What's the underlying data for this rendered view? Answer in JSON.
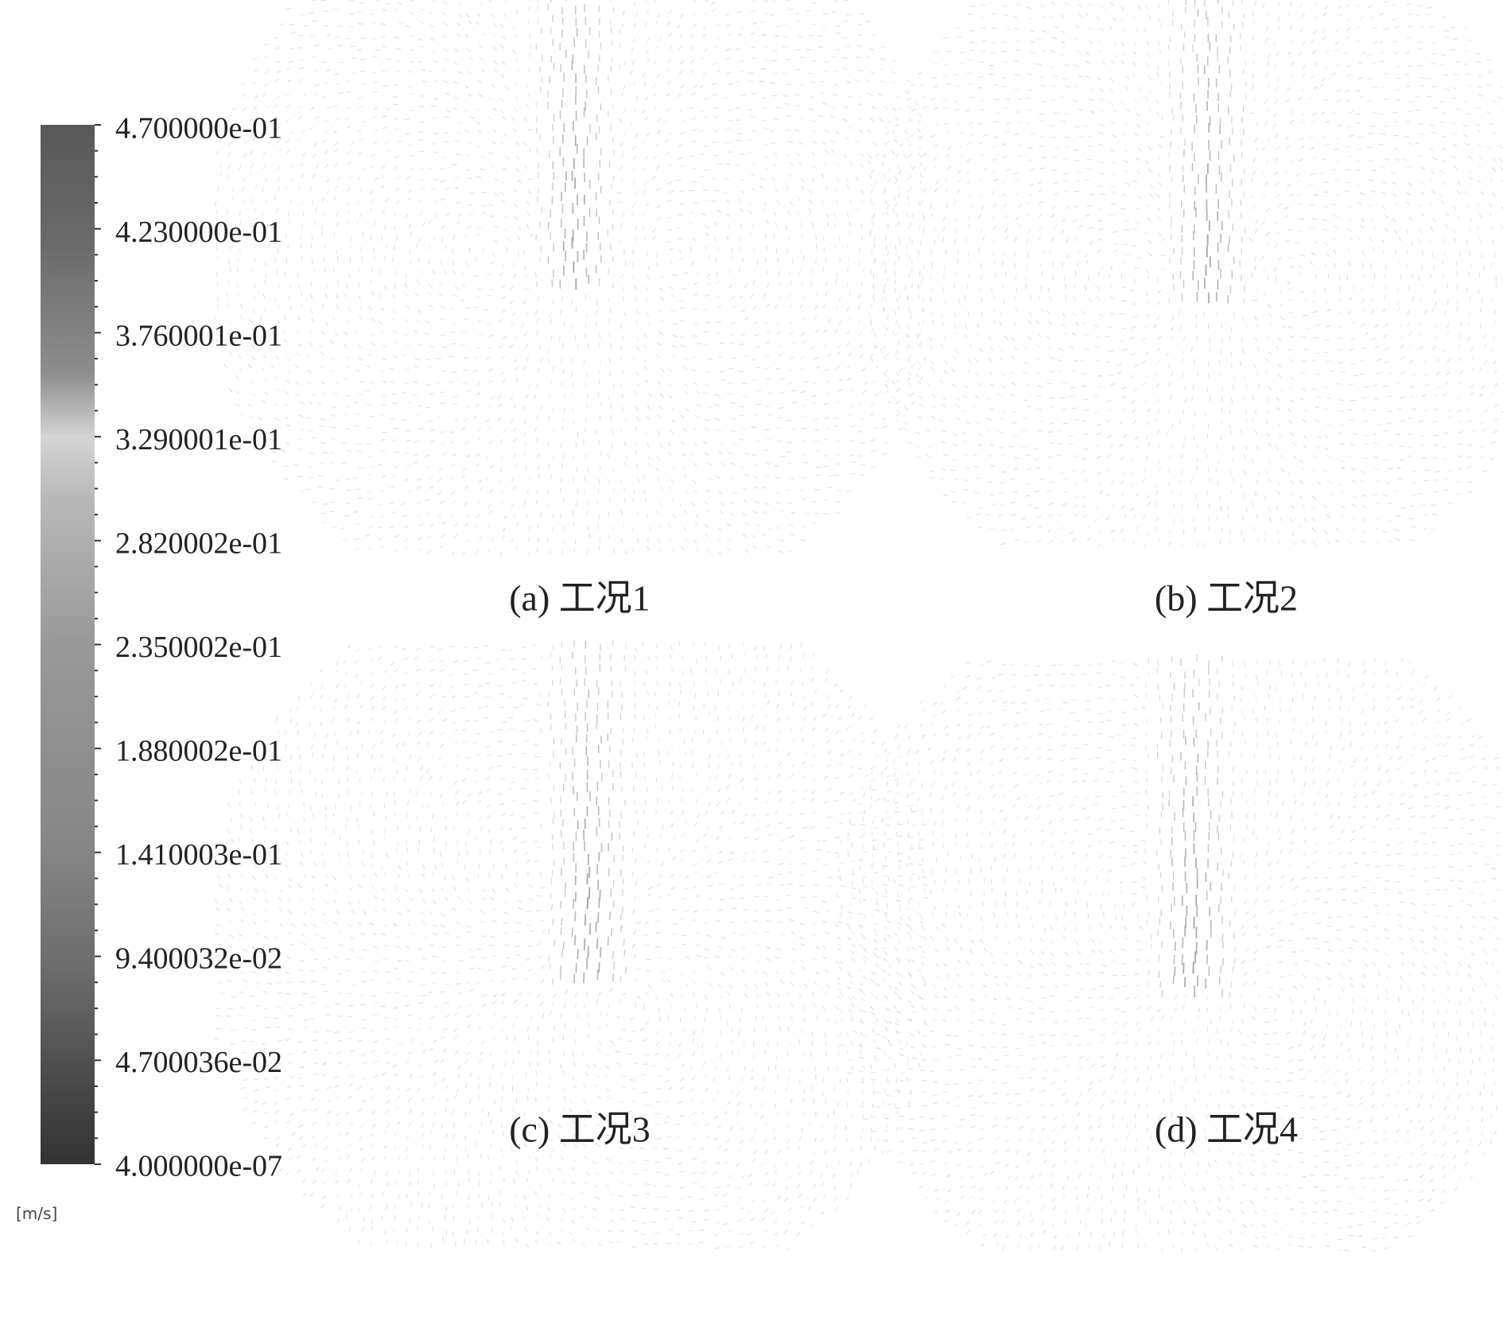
{
  "legend": {
    "labels": [
      "4.700000e-01",
      "4.230000e-01",
      "3.760001e-01",
      "3.290001e-01",
      "2.820002e-01",
      "2.350002e-01",
      "1.880002e-01",
      "1.410003e-01",
      "9.400032e-02",
      "4.700036e-02",
      "4.000000e-07"
    ],
    "unit": "[m/s]"
  },
  "panels": [
    {
      "caption": "(a) 工况1"
    },
    {
      "caption": "(b) 工况2"
    },
    {
      "caption": "(c) 工况3"
    },
    {
      "caption": "(d) 工况4"
    }
  ]
}
